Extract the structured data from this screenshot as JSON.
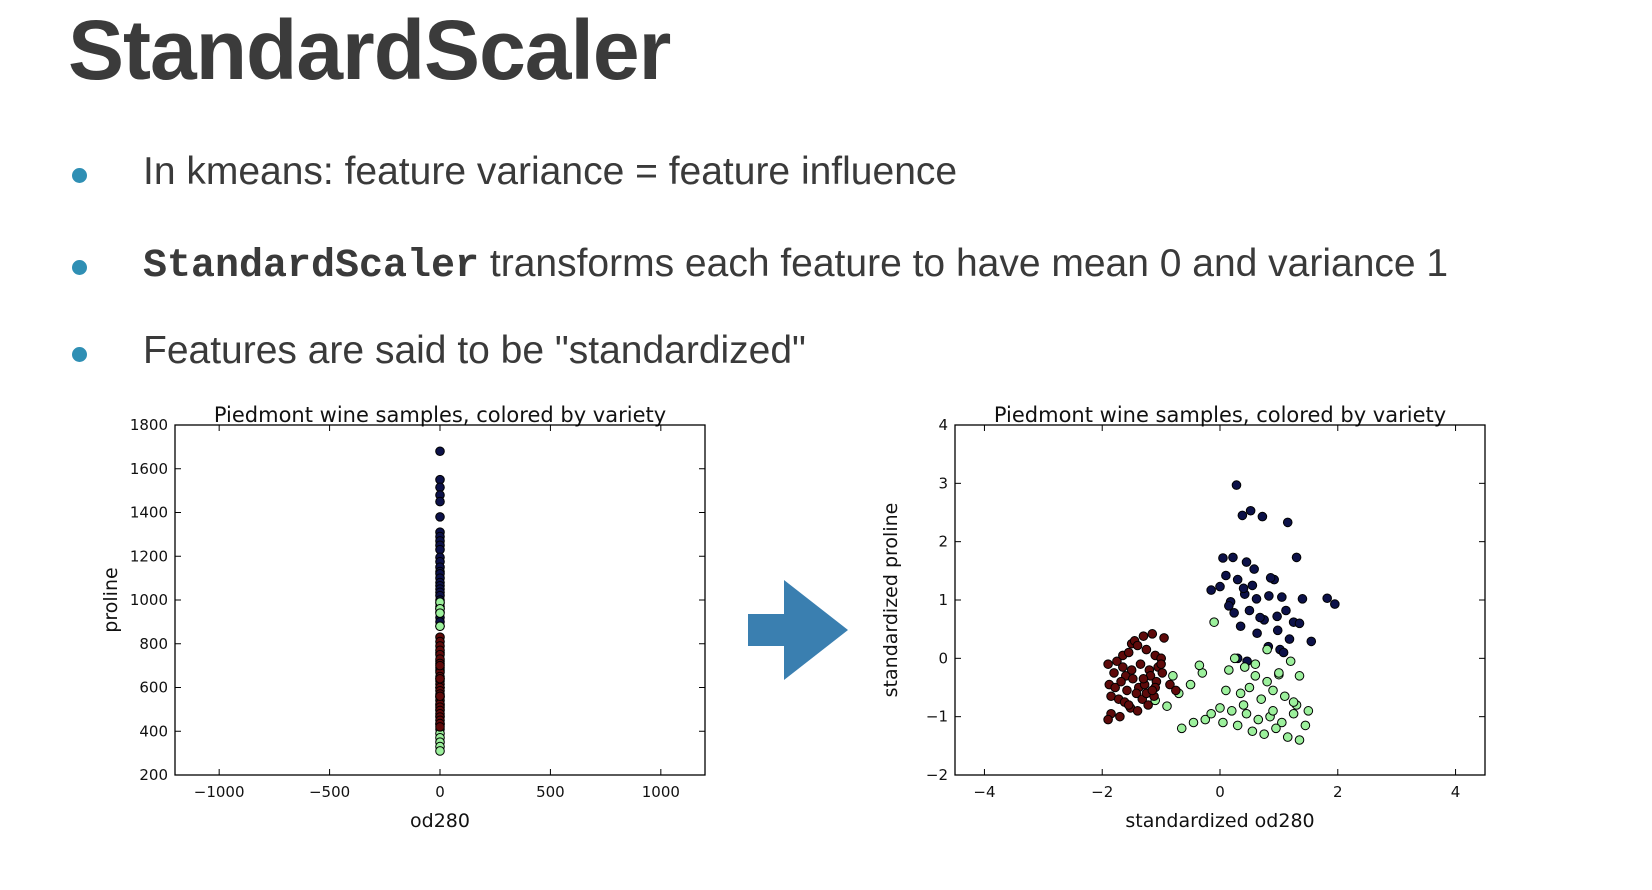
{
  "slide": {
    "title": "StandardScaler",
    "bullets": [
      {
        "text": "In kmeans: feature variance = feature influence"
      },
      {
        "code": "StandardScaler",
        "text": " transforms each feature to have mean 0 and variance 1"
      },
      {
        "text": "Features are said to be \"standardized\""
      }
    ]
  },
  "arrow": {
    "icon": "right-arrow-icon",
    "color": "#3a7fb0"
  },
  "colors": {
    "class_0": "#0c1148",
    "class_1": "#9cf09c",
    "class_2": "#5e0a0a",
    "bullet": "#2f8fb4"
  },
  "chart_data": [
    {
      "type": "scatter",
      "title": "Piedmont wine samples, colored by variety",
      "xlabel": "od280",
      "ylabel": "proline",
      "xlim": [
        -1200,
        1200
      ],
      "ylim": [
        200,
        1800
      ],
      "xticks": [
        -1000,
        -500,
        0,
        500,
        1000
      ],
      "xtick_labels": [
        "−1000",
        "−500",
        "0",
        "500",
        "1000"
      ],
      "yticks": [
        200,
        400,
        600,
        800,
        1000,
        1200,
        1400,
        1600,
        1800
      ],
      "ytick_labels": [
        "200",
        "400",
        "600",
        "800",
        "1000",
        "1200",
        "1400",
        "1600",
        "1800"
      ],
      "grid": false,
      "series": [
        {
          "color": "#0c1148",
          "x": [
            0,
            0,
            0,
            0,
            0,
            0,
            0,
            0,
            0,
            0,
            0,
            0,
            0,
            0,
            0,
            0,
            0,
            0,
            0,
            0,
            0,
            0,
            0,
            0,
            0,
            0,
            0,
            0,
            0,
            0
          ],
          "y": [
            1680,
            1550,
            1515,
            1480,
            1450,
            1380,
            1310,
            1290,
            1270,
            1250,
            1230,
            1195,
            1175,
            1150,
            1130,
            1120,
            1100,
            1080,
            1065,
            1050,
            1035,
            1020,
            1000,
            985,
            970,
            960,
            945,
            920,
            900,
            880
          ]
        },
        {
          "color": "#9cf09c",
          "x": [
            0,
            0,
            0,
            0,
            0,
            0,
            0,
            0,
            0,
            0,
            0,
            0,
            0,
            0,
            0,
            0,
            0,
            0,
            0,
            0
          ],
          "y": [
            990,
            960,
            940,
            880,
            760,
            720,
            680,
            640,
            600,
            560,
            520,
            500,
            470,
            430,
            410,
            390,
            370,
            350,
            330,
            310
          ]
        },
        {
          "color": "#5e0a0a",
          "x": [
            0,
            0,
            0,
            0,
            0,
            0,
            0,
            0,
            0,
            0,
            0,
            0,
            0,
            0,
            0,
            0,
            0,
            0,
            0,
            0,
            0,
            0,
            0,
            0,
            0,
            0,
            0,
            0
          ],
          "y": [
            830,
            810,
            790,
            770,
            750,
            730,
            710,
            690,
            670,
            650,
            630,
            615,
            600,
            585,
            570,
            555,
            540,
            525,
            510,
            495,
            480,
            465,
            450,
            435,
            420,
            560,
            640,
            700
          ]
        }
      ]
    },
    {
      "type": "scatter",
      "title": "Piedmont wine samples, colored by variety",
      "xlabel": "standardized od280",
      "ylabel": "standardized proline",
      "xlim": [
        -4.5,
        4.5
      ],
      "ylim": [
        -2,
        4
      ],
      "xticks": [
        -4,
        -2,
        0,
        2,
        4
      ],
      "xtick_labels": [
        "−4",
        "−2",
        "0",
        "2",
        "4"
      ],
      "yticks": [
        -2,
        -1,
        0,
        1,
        2,
        3,
        4
      ],
      "ytick_labels": [
        "−2",
        "−1",
        "0",
        "1",
        "2",
        "3",
        "4"
      ],
      "grid": false,
      "series": [
        {
          "color": "#0c1148",
          "x": [
            0.28,
            0.52,
            0.72,
            0.38,
            1.15,
            0.05,
            0.22,
            0.45,
            0.58,
            0.92,
            0.1,
            0.3,
            0.55,
            0.83,
            1.3,
            0.62,
            0.42,
            0.18,
            0.86,
            1.05,
            1.4,
            1.82,
            1.95,
            0.24,
            0.5,
            0.75,
            0.97,
            1.12,
            1.25,
            -0.15,
            0.0,
            0.35,
            0.63,
            0.98,
            1.18,
            1.55,
            0.82,
            1.02,
            1.08,
            0.3,
            0.46,
            1.35,
            0.68,
            0.4,
            0.15
          ],
          "y": [
            2.97,
            2.53,
            2.43,
            2.45,
            2.33,
            1.72,
            1.73,
            1.65,
            1.53,
            1.35,
            1.42,
            1.35,
            1.25,
            1.07,
            1.73,
            1.02,
            1.1,
            0.97,
            1.38,
            1.05,
            1.02,
            1.03,
            0.93,
            0.78,
            0.82,
            0.66,
            0.72,
            0.82,
            0.62,
            1.17,
            1.23,
            0.55,
            0.43,
            0.48,
            0.33,
            0.29,
            0.2,
            0.15,
            0.1,
            0.0,
            -0.05,
            0.6,
            0.7,
            1.2,
            0.9
          ]
        },
        {
          "color": "#9cf09c",
          "x": [
            -0.1,
            0.25,
            0.42,
            0.6,
            0.8,
            1.0,
            1.2,
            1.35,
            -0.3,
            -0.5,
            -0.7,
            -0.9,
            -1.1,
            0.1,
            0.35,
            0.5,
            0.7,
            0.9,
            1.1,
            1.3,
            1.5,
            0.0,
            0.2,
            0.45,
            0.65,
            0.85,
            1.05,
            1.25,
            1.45,
            -0.25,
            -0.45,
            -0.65,
            0.05,
            0.3,
            0.55,
            0.75,
            0.95,
            1.15,
            1.35,
            0.6,
            0.8,
            1.0,
            -0.8,
            -0.35,
            0.15,
            0.4,
            0.9,
            1.25,
            -1.0,
            -0.15
          ],
          "y": [
            0.62,
            0.0,
            -0.15,
            -0.1,
            0.15,
            -0.28,
            -0.05,
            -0.3,
            -0.25,
            -0.45,
            -0.6,
            -0.82,
            -0.72,
            -0.55,
            -0.6,
            -0.5,
            -0.7,
            -0.55,
            -0.65,
            -0.8,
            -0.9,
            -0.85,
            -0.9,
            -0.95,
            -1.05,
            -1.0,
            -1.1,
            -0.95,
            -1.15,
            -1.05,
            -1.1,
            -1.2,
            -1.1,
            -1.15,
            -1.25,
            -1.3,
            -1.2,
            -1.35,
            -1.4,
            -0.3,
            -0.4,
            -0.25,
            -0.3,
            -0.12,
            -0.2,
            -0.8,
            -0.9,
            -0.75,
            0.0,
            -0.95
          ]
        },
        {
          "color": "#5e0a0a",
          "x": [
            -1.9,
            -1.8,
            -1.75,
            -1.65,
            -1.6,
            -1.55,
            -1.5,
            -1.45,
            -1.4,
            -1.35,
            -1.3,
            -1.25,
            -1.2,
            -1.15,
            -1.1,
            -1.05,
            -1.0,
            -0.95,
            -1.88,
            -1.78,
            -1.68,
            -1.58,
            -1.48,
            -1.38,
            -1.28,
            -1.18,
            -1.08,
            -0.98,
            -1.85,
            -1.72,
            -1.62,
            -1.52,
            -1.42,
            -1.32,
            -1.22,
            -1.12,
            -1.85,
            -1.7,
            -1.55,
            -1.4,
            -1.25,
            -1.1,
            -0.85,
            -0.75,
            -1.9,
            -1.5,
            -1.3,
            -1.15,
            -1.0,
            -1.65
          ],
          "y": [
            -0.1,
            -0.25,
            -0.05,
            0.05,
            -0.3,
            0.1,
            0.25,
            0.3,
            0.22,
            -0.1,
            0.38,
            0.15,
            -0.2,
            0.42,
            0.05,
            -0.15,
            0.0,
            0.35,
            -0.45,
            -0.5,
            -0.4,
            -0.55,
            -0.35,
            -0.5,
            -0.45,
            -0.3,
            -0.4,
            -0.25,
            -0.65,
            -0.7,
            -0.75,
            -0.85,
            -0.6,
            -0.7,
            -0.8,
            -0.65,
            -0.95,
            -1.0,
            -0.8,
            -0.9,
            -0.6,
            -0.5,
            -0.45,
            -0.55,
            -1.05,
            -0.2,
            -0.35,
            -0.55,
            -0.1,
            -0.15
          ]
        }
      ]
    }
  ]
}
